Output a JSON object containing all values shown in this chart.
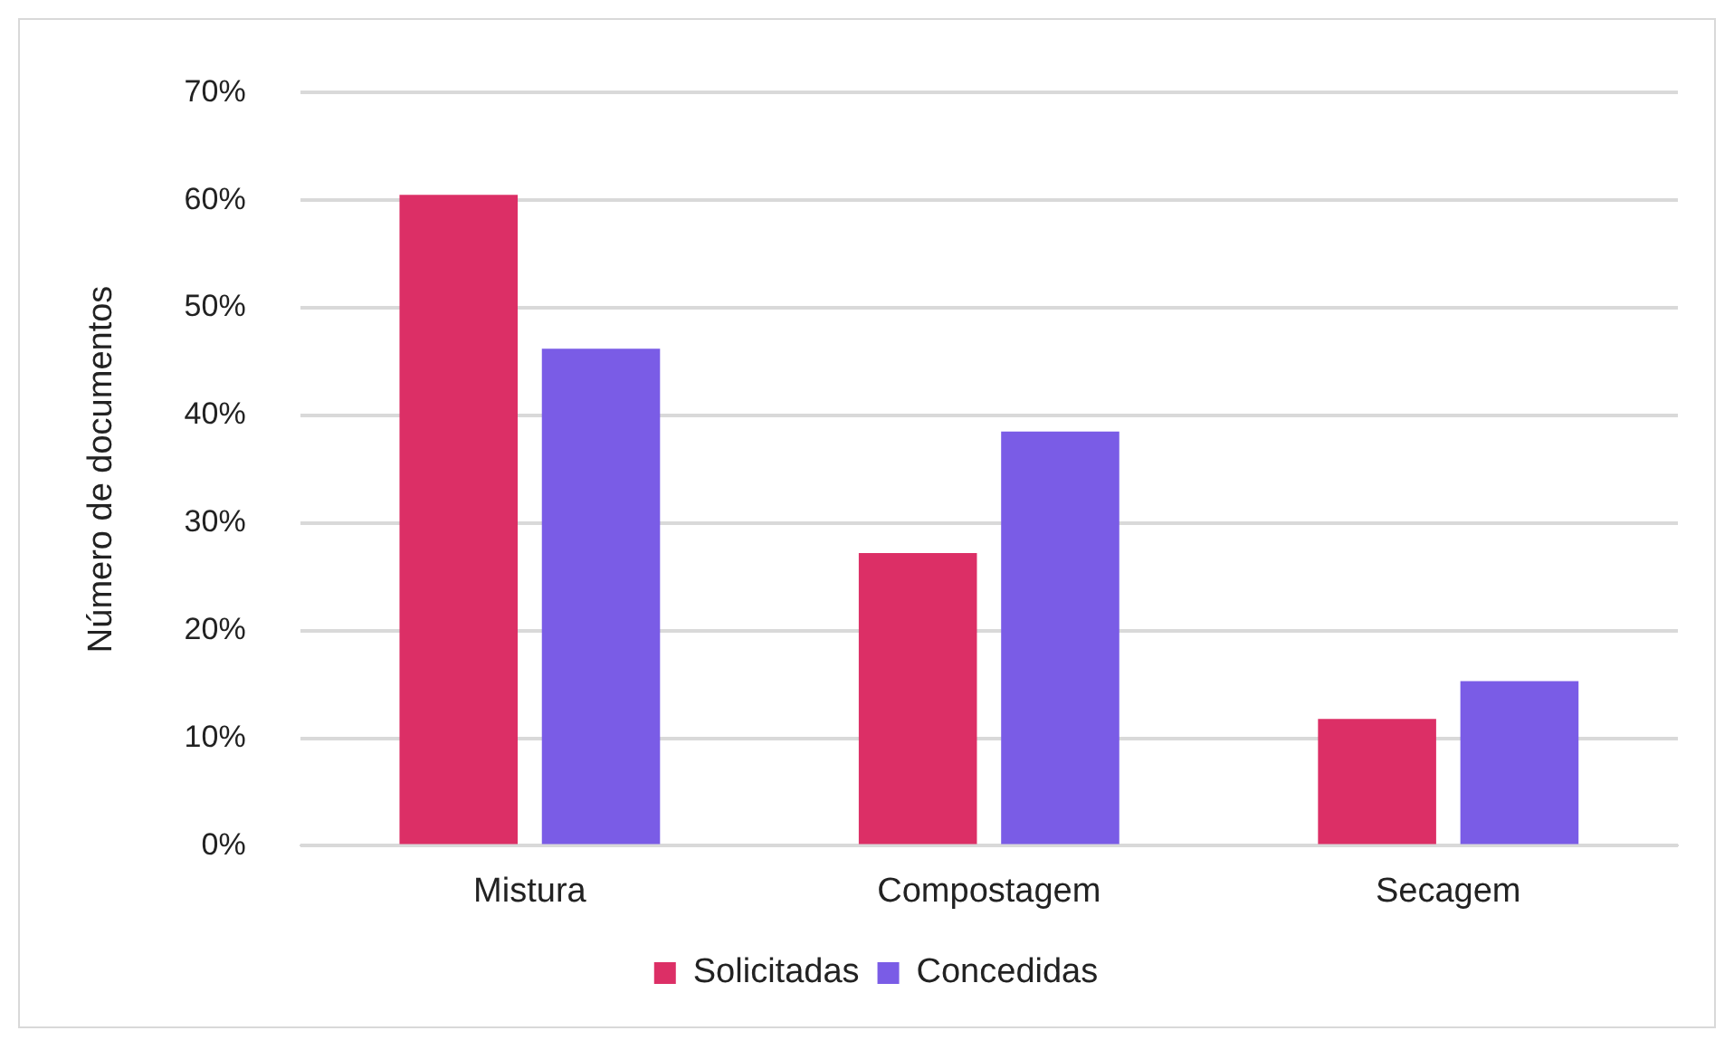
{
  "chart_data": {
    "type": "bar",
    "ylabel": "Número de documentos",
    "categories": [
      "Mistura",
      "Compostagem",
      "Secagem"
    ],
    "series": [
      {
        "name": "Solicitadas",
        "color": "#dc2f66",
        "values": [
          60.5,
          27.2,
          11.8
        ]
      },
      {
        "name": "Concedidas",
        "color": "#7a5ce6",
        "values": [
          46.2,
          38.5,
          15.3
        ]
      }
    ],
    "ylim": [
      0,
      70
    ],
    "yticks": [
      {
        "value": 0,
        "label": "0%"
      },
      {
        "value": 10,
        "label": "10%"
      },
      {
        "value": 20,
        "label": "20%"
      },
      {
        "value": 30,
        "label": "30%"
      },
      {
        "value": 40,
        "label": "40%"
      },
      {
        "value": 50,
        "label": "50%"
      },
      {
        "value": 60,
        "label": "60%"
      },
      {
        "value": 70,
        "label": "70%"
      }
    ],
    "grid": "y",
    "legend": "bottom"
  }
}
